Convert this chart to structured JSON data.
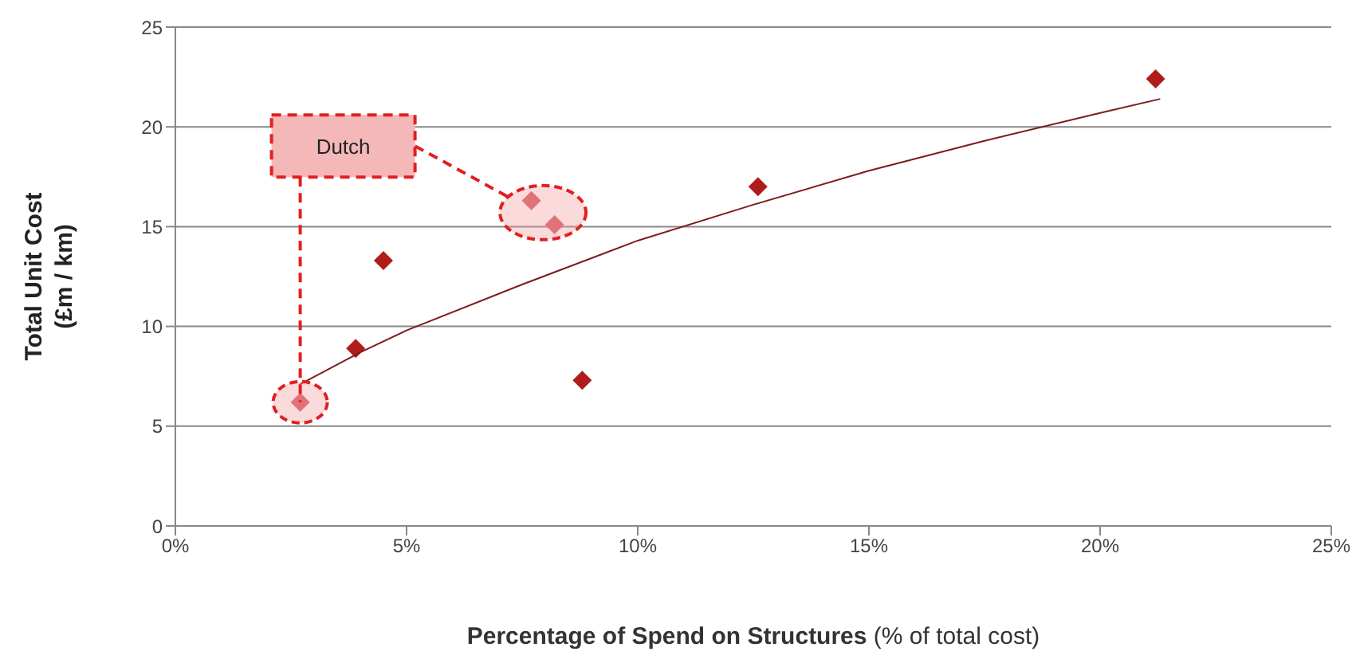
{
  "chart_data": {
    "type": "scatter",
    "xlabel": "Percentage of Spend on Structures (% of total cost)",
    "ylabel": "Total Unit Cost (£m / km)",
    "xlim": [
      0,
      25
    ],
    "xticks": [
      {
        "value": 0,
        "label": "0%"
      },
      {
        "value": 5,
        "label": "5%"
      },
      {
        "value": 10,
        "label": "10%"
      },
      {
        "value": 15,
        "label": "15%"
      },
      {
        "value": 20,
        "label": "20%"
      },
      {
        "value": 25,
        "label": "25%"
      }
    ],
    "ylim": [
      0,
      25
    ],
    "yticks": [
      0,
      5,
      10,
      15,
      20,
      25
    ],
    "grid": "y",
    "annotations": [
      {
        "text": "Dutch",
        "x": 2.7,
        "y": 6.2
      }
    ],
    "series": [
      {
        "type": "scatter",
        "marker": "diamond",
        "color": "#b01c1c",
        "colors": [
          "#d9606a",
          "#b01c1c",
          "#b01c1c",
          "#d9606a",
          "#d9606a",
          "#b01c1c",
          "#b01c1c",
          "#b01c1c"
        ],
        "x": [
          2.7,
          3.9,
          4.5,
          7.7,
          8.2,
          8.8,
          12.6,
          21.2
        ],
        "values": [
          6.2,
          8.9,
          13.3,
          16.3,
          15.1,
          7.3,
          17.0,
          22.4
        ]
      },
      {
        "type": "line",
        "marker": "none",
        "color": "#7b1c1c",
        "x": [
          2.7,
          4,
          5,
          7.5,
          10,
          12.5,
          15,
          17.5,
          20,
          21.3
        ],
        "values": [
          7.1,
          8.7,
          9.8,
          12.1,
          14.3,
          16.1,
          17.8,
          19.3,
          20.7,
          21.4
        ]
      }
    ]
  }
}
